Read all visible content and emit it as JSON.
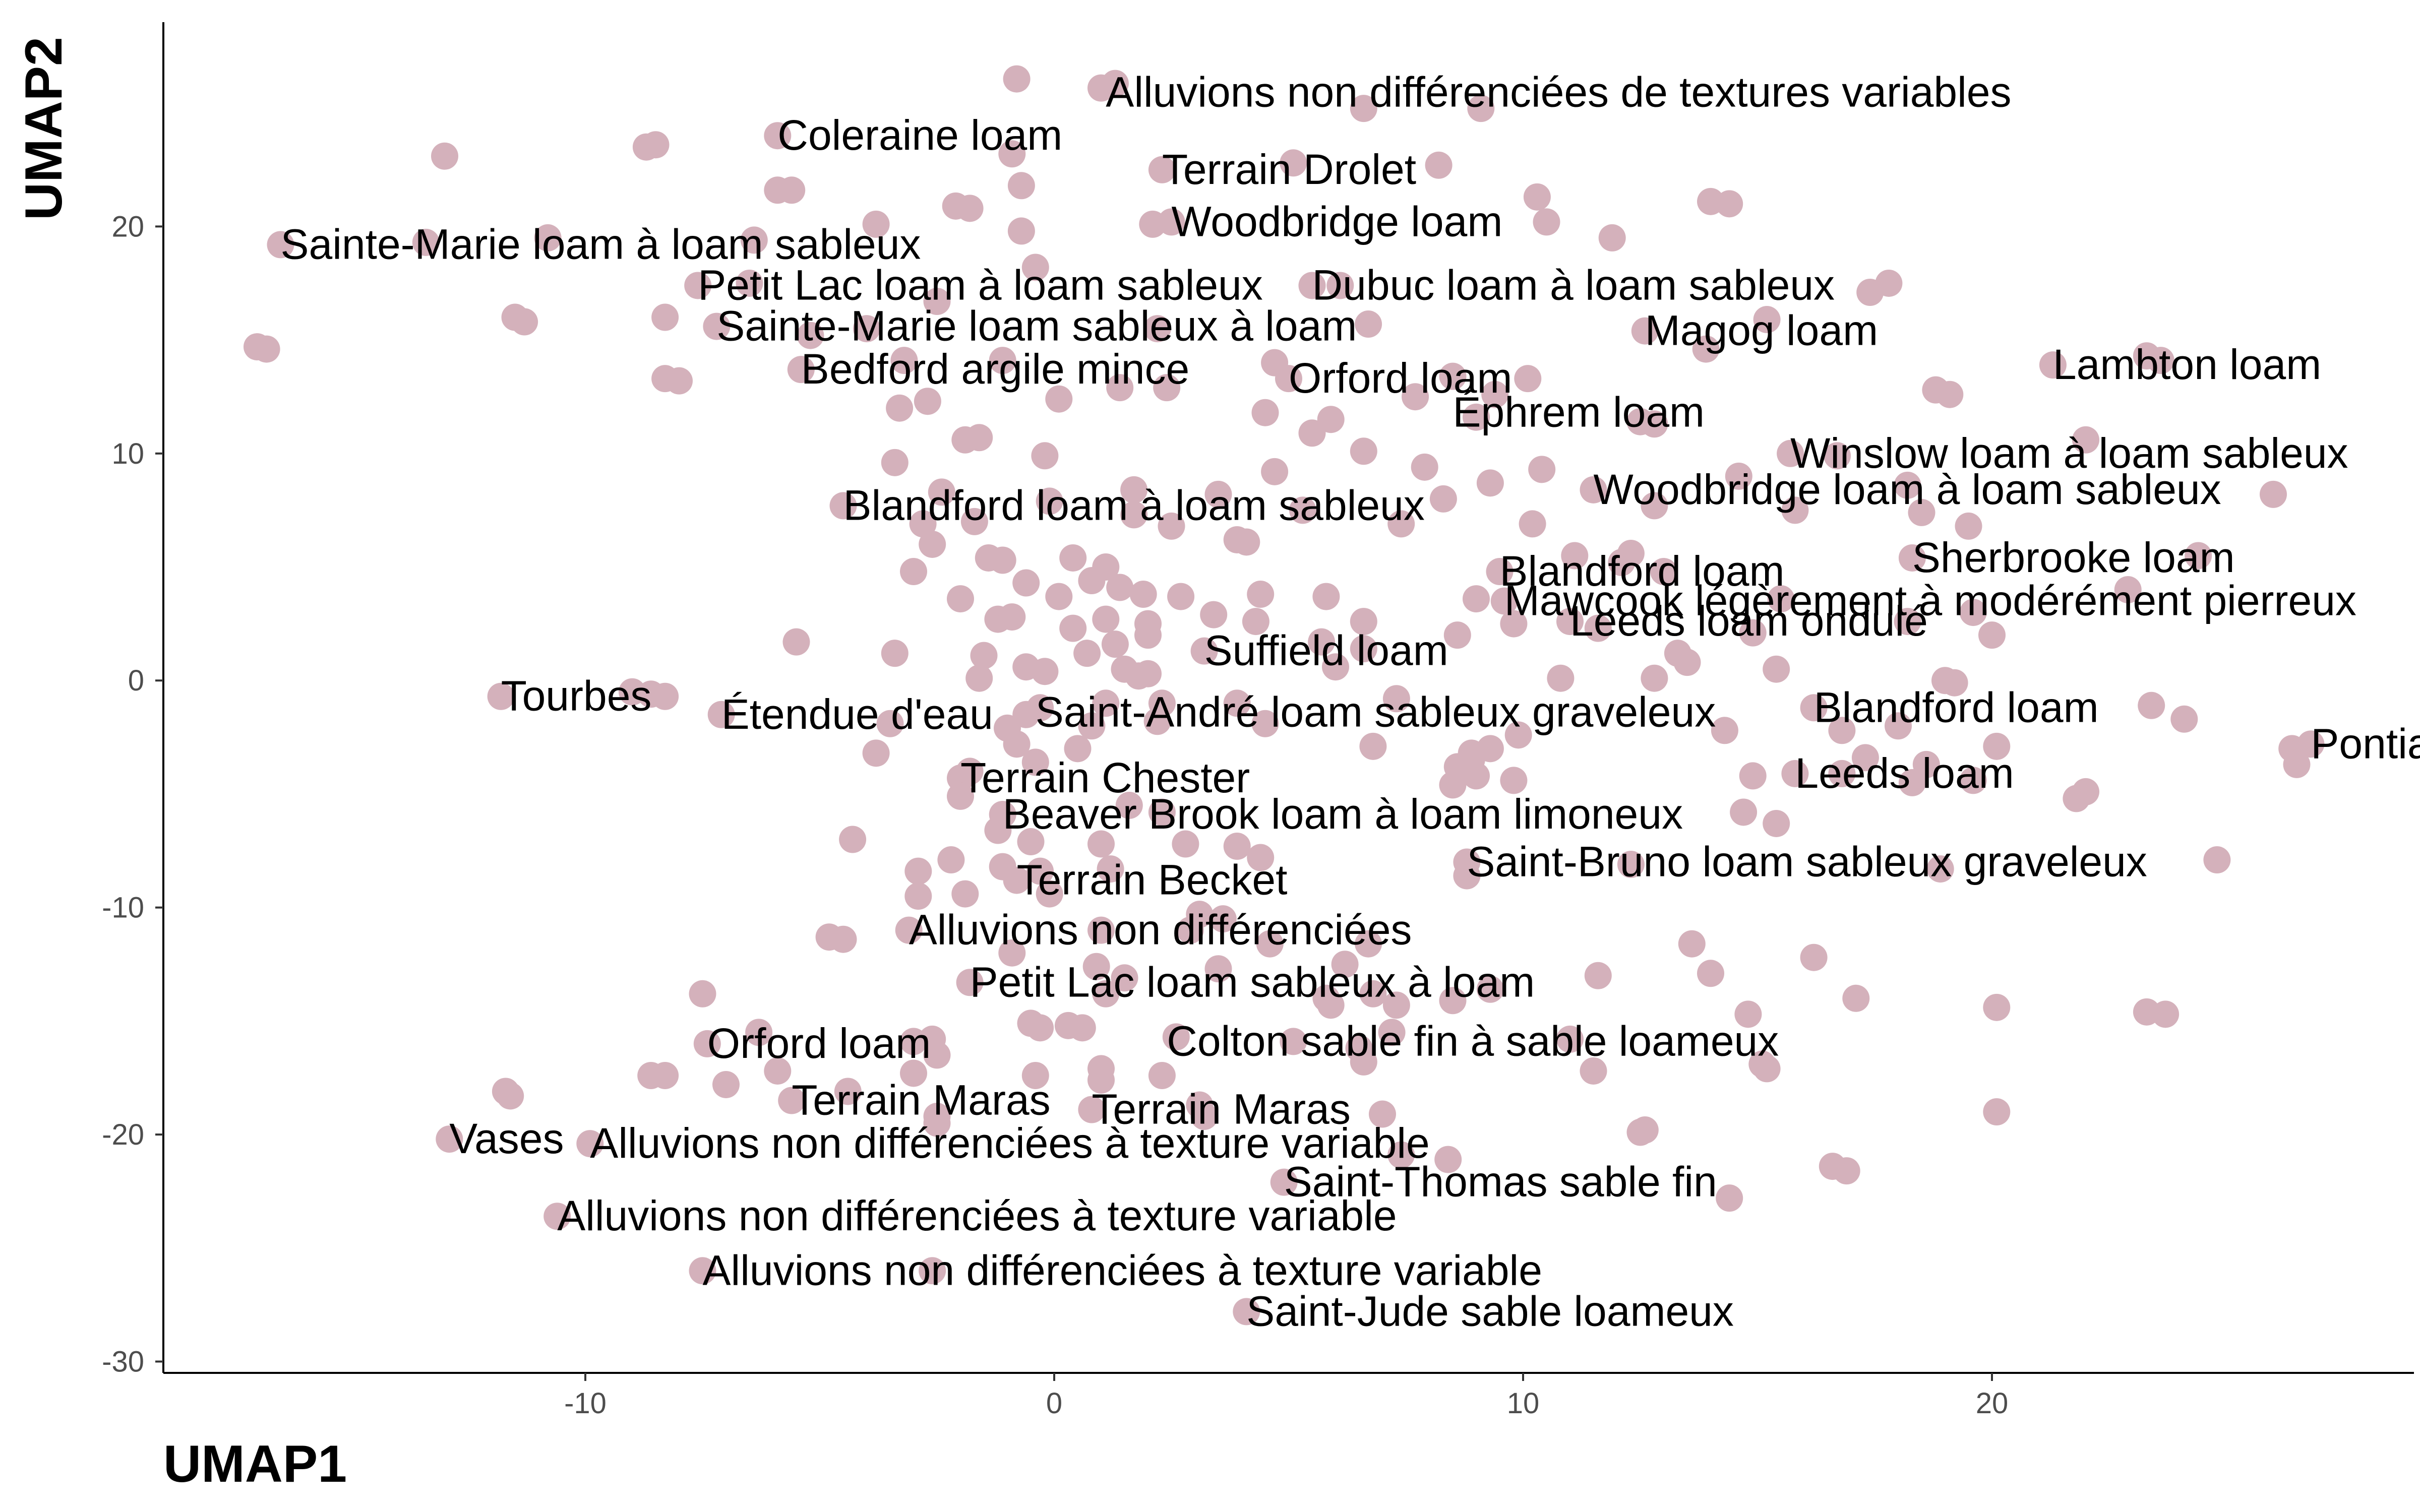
{
  "chart_data": {
    "type": "scatter",
    "title": "",
    "xlabel": "UMAP1",
    "ylabel": "UMAP2",
    "xlim": [
      -19,
      29
    ],
    "ylim": [
      -30.5,
      29
    ],
    "x_ticks": [
      -10,
      0,
      10,
      20
    ],
    "y_ticks": [
      -30,
      -20,
      -10,
      0,
      10,
      20
    ],
    "x_tick_labels": [
      "-10",
      "0",
      "10",
      "20"
    ],
    "y_tick_labels": [
      "-30",
      "-20",
      "-10",
      "0",
      "10",
      "20"
    ],
    "grid": false,
    "legend": "none",
    "point_color": "#d4b1bb",
    "labels": [
      {
        "text": "Alluvions non différenciées de textures variables",
        "x": 1.1,
        "y": 25.9
      },
      {
        "text": "Coleraine loam",
        "x": -5.9,
        "y": 24.0
      },
      {
        "text": "Terrain Drolet",
        "x": 2.3,
        "y": 22.5
      },
      {
        "text": "Woodbridge loam",
        "x": 2.5,
        "y": 20.2
      },
      {
        "text": "Sainte-Marie loam à loam sableux",
        "x": -16.5,
        "y": 19.2
      },
      {
        "text": "Petit Lac loam à loam sableux",
        "x": -7.6,
        "y": 17.4
      },
      {
        "text": "Dubuc loam à loam sableux",
        "x": 5.5,
        "y": 17.4
      },
      {
        "text": "Sainte-Marie loam sableux à loam",
        "x": -7.2,
        "y": 15.6
      },
      {
        "text": "Magog loam",
        "x": 12.6,
        "y": 15.4
      },
      {
        "text": "Bedford argile mince",
        "x": -5.4,
        "y": 13.7
      },
      {
        "text": "Orford loam",
        "x": 5.0,
        "y": 13.3
      },
      {
        "text": "Lambton loam",
        "x": 21.3,
        "y": 13.9
      },
      {
        "text": "Éphrem loam",
        "x": 8.5,
        "y": 11.8
      },
      {
        "text": "Winslow loam à loam sableux",
        "x": 15.7,
        "y": 10.0
      },
      {
        "text": "Woodbridge loam à loam sableux",
        "x": 11.5,
        "y": 8.4
      },
      {
        "text": "Blandford loam à loam sableux",
        "x": -4.5,
        "y": 7.7
      },
      {
        "text": "Blandford loam",
        "x": 9.5,
        "y": 4.8
      },
      {
        "text": "Sherbrooke loam",
        "x": 18.3,
        "y": 5.4
      },
      {
        "text": "Mawcook légèrement à modérément pierreux",
        "x": 9.6,
        "y": 3.5
      },
      {
        "text": "Leeds loam ondulé",
        "x": 11.0,
        "y": 2.6
      },
      {
        "text": "Suffield loam",
        "x": 3.2,
        "y": 1.3
      },
      {
        "text": "Tourbes",
        "x": -11.8,
        "y": -0.7
      },
      {
        "text": "Étendue d'eau",
        "x": -7.1,
        "y": -1.5
      },
      {
        "text": "Saint-André loam sableux graveleux",
        "x": -0.4,
        "y": -1.4
      },
      {
        "text": "Blandford loam",
        "x": 16.2,
        "y": -1.2
      },
      {
        "text": "Terrain Chester",
        "x": -2.0,
        "y": -4.3
      },
      {
        "text": "Leeds loam",
        "x": 15.8,
        "y": -4.1
      },
      {
        "text": "Pontiac loam",
        "x": 26.8,
        "y": -2.8
      },
      {
        "text": "Beaver Brook loam à loam limoneux",
        "x": -1.1,
        "y": -5.9
      },
      {
        "text": "Saint-Bruno loam sableux graveleux",
        "x": 8.8,
        "y": -8.0
      },
      {
        "text": "Terrain Becket",
        "x": -0.8,
        "y": -8.8
      },
      {
        "text": "Alluvions non différenciées",
        "x": -3.1,
        "y": -11.0
      },
      {
        "text": "Petit Lac loam sableux à loam",
        "x": -1.8,
        "y": -13.3
      },
      {
        "text": "Orford loam",
        "x": -7.4,
        "y": -16.0
      },
      {
        "text": "Colton sable fin à sable loameux",
        "x": 2.4,
        "y": -15.9
      },
      {
        "text": "Terrain Maras",
        "x": -5.6,
        "y": -18.5
      },
      {
        "text": "Terrain Maras",
        "x": 0.8,
        "y": -18.9
      },
      {
        "text": "Vases",
        "x": -12.9,
        "y": -20.2
      },
      {
        "text": "Alluvions non différenciées à texture variable",
        "x": -9.9,
        "y": -20.4
      },
      {
        "text": "Saint-Thomas sable fin",
        "x": 4.9,
        "y": -22.1
      },
      {
        "text": "Alluvions non différenciées à texture variable",
        "x": -10.6,
        "y": -23.6
      },
      {
        "text": "Alluvions non différenciées à texture variable",
        "x": -7.5,
        "y": -26.0
      },
      {
        "text": "Saint-Jude sable loameux",
        "x": 4.1,
        "y": -27.8
      }
    ],
    "points": [
      [
        -0.8,
        26.5
      ],
      [
        1.0,
        26.1
      ],
      [
        1.3,
        26.3
      ],
      [
        6.6,
        25.2
      ],
      [
        9.1,
        25.2
      ],
      [
        -13.0,
        23.1
      ],
      [
        -8.5,
        23.6
      ],
      [
        -8.7,
        23.5
      ],
      [
        -5.9,
        24.0
      ],
      [
        -0.9,
        23.2
      ],
      [
        2.3,
        22.5
      ],
      [
        5.1,
        22.8
      ],
      [
        8.2,
        22.7
      ],
      [
        -5.9,
        21.6
      ],
      [
        -5.6,
        21.6
      ],
      [
        -0.7,
        21.8
      ],
      [
        -2.1,
        20.9
      ],
      [
        -1.8,
        20.8
      ],
      [
        10.3,
        21.3
      ],
      [
        14.0,
        21.1
      ],
      [
        14.4,
        21.0
      ],
      [
        2.5,
        20.2
      ],
      [
        2.1,
        20.1
      ],
      [
        10.5,
        20.2
      ],
      [
        -16.5,
        19.2
      ],
      [
        -13.4,
        19.3
      ],
      [
        -10.8,
        19.5
      ],
      [
        -3.8,
        20.1
      ],
      [
        -0.7,
        19.8
      ],
      [
        11.9,
        19.5
      ],
      [
        -6.4,
        19.4
      ],
      [
        -0.4,
        18.2
      ],
      [
        -11.5,
        16.0
      ],
      [
        -11.3,
        15.8
      ],
      [
        -8.3,
        16.0
      ],
      [
        -7.6,
        17.4
      ],
      [
        -6.5,
        17.5
      ],
      [
        -2.5,
        16.7
      ],
      [
        5.5,
        17.4
      ],
      [
        6.1,
        17.4
      ],
      [
        17.4,
        17.1
      ],
      [
        17.8,
        17.5
      ],
      [
        -7.2,
        15.6
      ],
      [
        -5.2,
        15.2
      ],
      [
        -4.0,
        15.5
      ],
      [
        2.2,
        15.5
      ],
      [
        12.6,
        15.4
      ],
      [
        15.2,
        15.9
      ],
      [
        6.7,
        15.7
      ],
      [
        -17.0,
        14.7
      ],
      [
        -16.8,
        14.6
      ],
      [
        -8.3,
        13.3
      ],
      [
        -8.0,
        13.2
      ],
      [
        -5.4,
        13.7
      ],
      [
        -3.2,
        14.1
      ],
      [
        -1.1,
        14.1
      ],
      [
        4.7,
        14.0
      ],
      [
        5.0,
        13.3
      ],
      [
        8.5,
        13.4
      ],
      [
        10.1,
        13.3
      ],
      [
        13.9,
        14.6
      ],
      [
        21.3,
        13.9
      ],
      [
        23.3,
        14.3
      ],
      [
        23.6,
        14.1
      ],
      [
        0.1,
        12.4
      ],
      [
        1.4,
        12.9
      ],
      [
        2.4,
        12.9
      ],
      [
        -3.3,
        12.0
      ],
      [
        -2.7,
        12.3
      ],
      [
        4.5,
        11.8
      ],
      [
        7.7,
        12.5
      ],
      [
        9.4,
        12.6
      ],
      [
        18.8,
        12.8
      ],
      [
        19.1,
        12.6
      ],
      [
        12.8,
        11.3
      ],
      [
        12.5,
        11.4
      ],
      [
        5.9,
        11.5
      ],
      [
        9.0,
        11.6
      ],
      [
        -3.4,
        9.6
      ],
      [
        -1.6,
        10.7
      ],
      [
        -1.9,
        10.6
      ],
      [
        -0.2,
        9.9
      ],
      [
        5.5,
        10.9
      ],
      [
        6.6,
        10.1
      ],
      [
        15.7,
        10.0
      ],
      [
        16.7,
        9.9
      ],
      [
        22.0,
        10.6
      ],
      [
        4.7,
        9.2
      ],
      [
        7.9,
        9.4
      ],
      [
        10.4,
        9.3
      ],
      [
        14.6,
        9.0
      ],
      [
        11.5,
        8.4
      ],
      [
        18.2,
        8.6
      ],
      [
        26.0,
        8.2
      ],
      [
        -4.5,
        7.7
      ],
      [
        -2.4,
        8.3
      ],
      [
        -0.1,
        7.9
      ],
      [
        1.7,
        8.4
      ],
      [
        3.5,
        8.2
      ],
      [
        5.3,
        7.5
      ],
      [
        8.3,
        8.0
      ],
      [
        9.3,
        8.7
      ],
      [
        12.8,
        7.7
      ],
      [
        15.8,
        7.5
      ],
      [
        18.5,
        7.4
      ],
      [
        -2.8,
        6.9
      ],
      [
        -1.7,
        7.0
      ],
      [
        1.7,
        7.3
      ],
      [
        2.5,
        6.8
      ],
      [
        3.9,
        6.2
      ],
      [
        4.1,
        6.1
      ],
      [
        7.4,
        6.9
      ],
      [
        10.2,
        6.9
      ],
      [
        19.5,
        6.8
      ],
      [
        -2.6,
        6.0
      ],
      [
        -1.4,
        5.4
      ],
      [
        -1.1,
        5.3
      ],
      [
        0.4,
        5.4
      ],
      [
        1.1,
        5.0
      ],
      [
        11.1,
        5.5
      ],
      [
        12.3,
        5.6
      ],
      [
        12.1,
        5.2
      ],
      [
        18.3,
        5.4
      ],
      [
        24.4,
        5.5
      ],
      [
        -3.0,
        4.8
      ],
      [
        -0.6,
        4.3
      ],
      [
        0.8,
        4.4
      ],
      [
        1.4,
        4.1
      ],
      [
        13.0,
        4.8
      ],
      [
        9.5,
        4.8
      ],
      [
        -2.0,
        3.6
      ],
      [
        0.1,
        3.7
      ],
      [
        1.9,
        3.8
      ],
      [
        2.7,
        3.7
      ],
      [
        4.4,
        3.8
      ],
      [
        5.8,
        3.7
      ],
      [
        9.0,
        3.6
      ],
      [
        9.6,
        3.5
      ],
      [
        15.5,
        3.6
      ],
      [
        19.6,
        3.0
      ],
      [
        22.9,
        4.0
      ],
      [
        -1.2,
        2.7
      ],
      [
        -0.9,
        2.8
      ],
      [
        0.4,
        2.3
      ],
      [
        1.1,
        2.7
      ],
      [
        2.0,
        2.5
      ],
      [
        3.4,
        2.9
      ],
      [
        4.3,
        2.6
      ],
      [
        6.6,
        2.6
      ],
      [
        9.8,
        2.5
      ],
      [
        11.0,
        2.6
      ],
      [
        11.6,
        2.3
      ],
      [
        14.9,
        2.1
      ],
      [
        18.2,
        2.6
      ],
      [
        20.0,
        2.0
      ],
      [
        -5.5,
        1.7
      ],
      [
        -3.4,
        1.2
      ],
      [
        -1.5,
        1.1
      ],
      [
        0.7,
        1.2
      ],
      [
        1.3,
        1.6
      ],
      [
        2.0,
        2.0
      ],
      [
        3.2,
        1.3
      ],
      [
        5.7,
        1.7
      ],
      [
        6.6,
        1.4
      ],
      [
        8.6,
        2.0
      ],
      [
        13.3,
        1.2
      ],
      [
        -1.6,
        0.1
      ],
      [
        -0.6,
        0.6
      ],
      [
        -0.2,
        0.4
      ],
      [
        1.5,
        0.5
      ],
      [
        1.8,
        0.2
      ],
      [
        2.0,
        0.3
      ],
      [
        6.0,
        0.6
      ],
      [
        10.8,
        0.1
      ],
      [
        12.8,
        0.1
      ],
      [
        13.5,
        0.8
      ],
      [
        15.4,
        0.5
      ],
      [
        19.0,
        0.0
      ],
      [
        19.2,
        -0.1
      ],
      [
        -11.8,
        -0.7
      ],
      [
        -9.0,
        -0.5
      ],
      [
        -8.6,
        -0.6
      ],
      [
        -8.3,
        -0.7
      ],
      [
        -7.1,
        -1.5
      ],
      [
        -0.6,
        -1.5
      ],
      [
        -0.3,
        -1.2
      ],
      [
        1.1,
        -1.0
      ],
      [
        2.3,
        -1.0
      ],
      [
        3.9,
        -1.0
      ],
      [
        7.3,
        -0.8
      ],
      [
        16.2,
        -1.2
      ],
      [
        23.4,
        -1.1
      ],
      [
        24.1,
        -1.7
      ],
      [
        -3.5,
        -1.9
      ],
      [
        -1.0,
        -2.1
      ],
      [
        0.8,
        -2.0
      ],
      [
        2.2,
        -1.8
      ],
      [
        4.5,
        -1.9
      ],
      [
        9.9,
        -2.4
      ],
      [
        14.3,
        -2.2
      ],
      [
        16.8,
        -2.2
      ],
      [
        18.0,
        -2.0
      ],
      [
        26.8,
        -2.8
      ],
      [
        26.4,
        -3.0
      ],
      [
        20.1,
        -2.9
      ],
      [
        -0.8,
        -2.8
      ],
      [
        0.5,
        -3.0
      ],
      [
        6.8,
        -2.9
      ],
      [
        8.9,
        -3.2
      ],
      [
        9.3,
        -3.0
      ],
      [
        17.3,
        -3.4
      ],
      [
        -0.4,
        -3.6
      ],
      [
        8.6,
        -3.8
      ],
      [
        8.9,
        -3.5
      ],
      [
        15.8,
        -4.1
      ],
      [
        18.6,
        -3.7
      ],
      [
        26.5,
        -3.7
      ],
      [
        -2.0,
        -4.3
      ],
      [
        -1.8,
        -4.0
      ],
      [
        8.5,
        -4.6
      ],
      [
        9.0,
        -4.2
      ],
      [
        9.8,
        -4.4
      ],
      [
        14.9,
        -4.2
      ],
      [
        16.8,
        -4.1
      ],
      [
        19.6,
        -4.4
      ],
      [
        22.0,
        -4.9
      ],
      [
        -2.0,
        -5.1
      ],
      [
        -1.1,
        -5.9
      ],
      [
        1.6,
        -5.5
      ],
      [
        2.3,
        -5.8
      ],
      [
        14.7,
        -5.8
      ],
      [
        15.4,
        -6.3
      ],
      [
        -4.3,
        -7.0
      ],
      [
        -1.2,
        -6.6
      ],
      [
        -0.5,
        -7.1
      ],
      [
        1.0,
        -7.2
      ],
      [
        2.8,
        -7.2
      ],
      [
        3.9,
        -7.3
      ],
      [
        4.4,
        -7.8
      ],
      [
        -2.2,
        -7.9
      ],
      [
        -1.1,
        -8.2
      ],
      [
        -0.3,
        -8.4
      ],
      [
        1.2,
        -8.3
      ],
      [
        8.8,
        -8.0
      ],
      [
        12.3,
        -8.1
      ],
      [
        18.9,
        -8.3
      ],
      [
        24.8,
        -7.9
      ],
      [
        -2.9,
        -8.4
      ],
      [
        -0.8,
        -8.8
      ],
      [
        8.8,
        -8.6
      ],
      [
        -2.9,
        -9.5
      ],
      [
        -1.9,
        -9.4
      ],
      [
        -0.1,
        -9.4
      ],
      [
        3.1,
        -10.3
      ],
      [
        3.6,
        -10.5
      ],
      [
        -3.1,
        -11.0
      ],
      [
        -4.8,
        -11.3
      ],
      [
        -4.5,
        -11.4
      ],
      [
        1.0,
        -11.0
      ],
      [
        2.9,
        -11.0
      ],
      [
        4.6,
        -11.6
      ],
      [
        6.7,
        -11.6
      ],
      [
        13.6,
        -11.6
      ],
      [
        -0.9,
        -12.0
      ],
      [
        0.9,
        -12.6
      ],
      [
        1.5,
        -13.1
      ],
      [
        6.2,
        -12.5
      ],
      [
        11.6,
        -13.0
      ],
      [
        14.0,
        -12.9
      ],
      [
        16.2,
        -12.2
      ],
      [
        -1.8,
        -13.3
      ],
      [
        1.1,
        -13.8
      ],
      [
        5.8,
        -14.0
      ],
      [
        6.8,
        -13.8
      ],
      [
        9.3,
        -13.6
      ],
      [
        8.5,
        -14.1
      ],
      [
        -7.5,
        -13.8
      ],
      [
        5.9,
        -14.3
      ],
      [
        7.3,
        -14.3
      ],
      [
        14.8,
        -14.7
      ],
      [
        17.1,
        -14.0
      ],
      [
        20.1,
        -14.4
      ],
      [
        23.3,
        -14.6
      ],
      [
        23.7,
        -14.7
      ],
      [
        -0.5,
        -15.1
      ],
      [
        -0.3,
        -15.3
      ],
      [
        0.3,
        -15.2
      ],
      [
        0.6,
        -15.3
      ],
      [
        2.6,
        -15.7
      ],
      [
        5.1,
        -15.9
      ],
      [
        7.2,
        -15.5
      ],
      [
        11.0,
        -15.8
      ],
      [
        -7.4,
        -16.0
      ],
      [
        -2.6,
        -15.8
      ],
      [
        -3.0,
        -15.9
      ],
      [
        -2.5,
        -16.5
      ],
      [
        6.5,
        -16.2
      ],
      [
        6.6,
        -16.8
      ],
      [
        15.1,
        -16.9
      ],
      [
        15.2,
        -17.1
      ],
      [
        -8.6,
        -17.4
      ],
      [
        -8.3,
        -17.4
      ],
      [
        -5.9,
        -17.2
      ],
      [
        -3.0,
        -17.3
      ],
      [
        -0.4,
        -17.4
      ],
      [
        1.0,
        -17.1
      ],
      [
        2.3,
        -17.4
      ],
      [
        11.5,
        -17.2
      ],
      [
        -11.7,
        -18.1
      ],
      [
        -11.6,
        -18.3
      ],
      [
        -7.0,
        -17.8
      ],
      [
        -4.4,
        -18.1
      ],
      [
        -5.6,
        -18.5
      ],
      [
        1.0,
        -17.6
      ],
      [
        0.8,
        -18.9
      ],
      [
        3.1,
        -18.7
      ],
      [
        7.0,
        -19.1
      ],
      [
        -2.5,
        -19.2
      ],
      [
        -2.5,
        -19.5
      ],
      [
        3.2,
        -19.2
      ],
      [
        12.5,
        -19.9
      ],
      [
        12.6,
        -19.8
      ],
      [
        20.1,
        -19.0
      ],
      [
        -12.9,
        -20.2
      ],
      [
        -9.9,
        -20.4
      ],
      [
        7.4,
        -20.9
      ],
      [
        8.4,
        -21.1
      ],
      [
        16.6,
        -21.4
      ],
      [
        16.9,
        -21.6
      ],
      [
        4.9,
        -22.1
      ],
      [
        14.4,
        -22.8
      ],
      [
        -10.6,
        -23.6
      ],
      [
        -7.5,
        -26.0
      ],
      [
        -2.6,
        -26.0
      ],
      [
        4.1,
        -27.8
      ],
      [
        -6.3,
        -15.5
      ],
      [
        21.8,
        -5.2
      ],
      [
        18.3,
        -4.5
      ],
      [
        3.5,
        -12.7
      ],
      [
        -3.8,
        -3.2
      ]
    ]
  }
}
